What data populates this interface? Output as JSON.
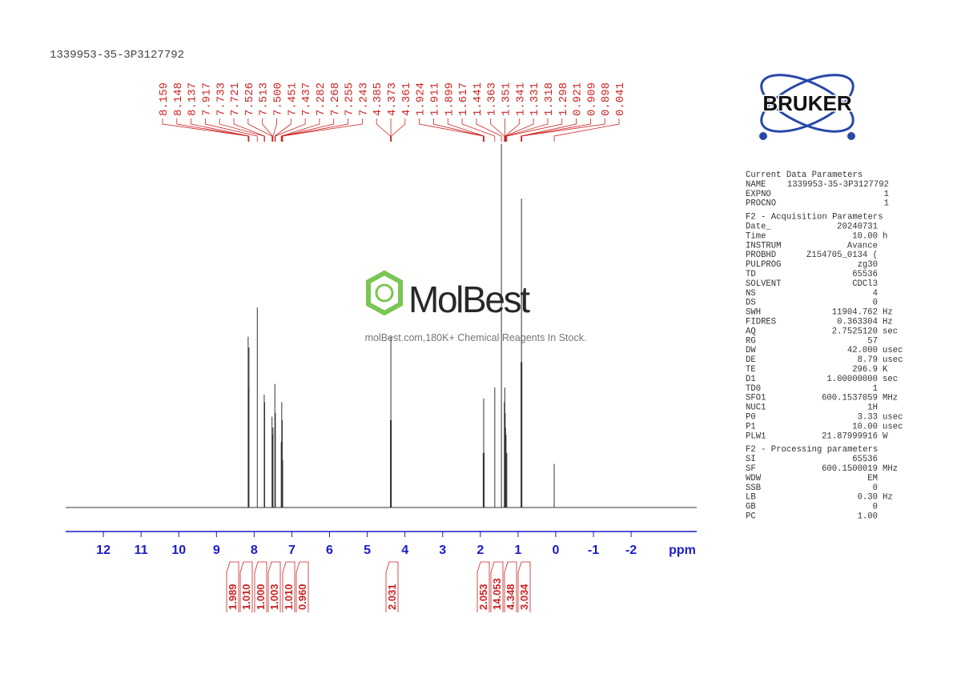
{
  "chart_data": {
    "type": "nmr",
    "title": "1339953-35-3P3127792",
    "x_label": "ppm",
    "xlim": [
      13,
      -3.74
    ],
    "xticks": [
      12,
      11,
      10,
      9,
      8,
      7,
      6,
      5,
      4,
      3,
      2,
      1,
      0,
      -1,
      -2
    ],
    "x": [
      8.159,
      8.148,
      8.137,
      7.917,
      7.733,
      7.721,
      7.526,
      7.513,
      7.5,
      7.451,
      7.437,
      7.282,
      7.268,
      7.255,
      7.243,
      4.385,
      4.373,
      4.361,
      1.924,
      1.911,
      1.899,
      1.617,
      1.441,
      1.363,
      1.351,
      1.341,
      1.331,
      1.318,
      1.298,
      0.921,
      0.909,
      0.898,
      0.041
    ],
    "values": [
      47,
      33,
      44,
      55,
      31,
      29,
      25,
      20,
      22,
      34,
      26,
      18,
      29,
      24,
      13,
      24,
      47,
      24,
      15,
      30,
      15,
      33,
      100,
      29,
      33,
      26,
      22,
      20,
      15,
      40,
      85,
      40,
      12
    ],
    "peak_labels": [
      "8.159",
      "8.148",
      "8.137",
      "7.917",
      "7.733",
      "7.721",
      "7.526",
      "7.513",
      "7.500",
      "7.451",
      "7.437",
      "7.282",
      "7.268",
      "7.255",
      "7.243",
      "4.385",
      "4.373",
      "4.361",
      "1.924",
      "1.911",
      "1.899",
      "1.617",
      "1.441",
      "1.363",
      "1.351",
      "1.341",
      "1.331",
      "1.318",
      "1.298",
      "0.921",
      "0.909",
      "0.898",
      "0.041"
    ],
    "integrals": [
      1.989,
      {
        "value": 1.01,
        "label": "1.010"
      },
      {
        "value": 1,
        "label": "1.000"
      },
      1.003,
      {
        "value": 1.01,
        "label": "1.010"
      },
      {
        "value": 0.96,
        "label": "0.960"
      },
      2.031,
      2.053,
      14.053,
      4.348,
      3.034
    ],
    "color": "#333333",
    "label_color": "#cc2222",
    "axis_color": "#1a1acc"
  },
  "logo": "BRUKER",
  "watermark": {
    "brand": "MolBest",
    "tagline": "molBest.com,180K+ Chemical Reagents In Stock."
  },
  "parameters": [
    {
      "title": "Current Data Parameters",
      "rows": [
        {
          "name": "NAME",
          "value": "1339953-35-3P3127792"
        },
        {
          "name": "EXPNO",
          "value": "1"
        },
        {
          "name": "PROCNO",
          "value": "1"
        }
      ]
    },
    {
      "title": "F2 - Acquisition Parameters",
      "rows": [
        {
          "name": "Date_",
          "value": "20240731"
        },
        {
          "name": "Time",
          "value": "10.00",
          "unit": "h"
        },
        {
          "name": "INSTRUM",
          "value": "Avance"
        },
        {
          "name": "PROBHD",
          "value": "Z154705_0134 ("
        },
        {
          "name": "PULPROG",
          "value": "zg30"
        },
        {
          "name": "TD",
          "value": "65536"
        },
        {
          "name": "SOLVENT",
          "value": "CDCl3"
        },
        {
          "name": "NS",
          "value": "4"
        },
        {
          "name": "DS",
          "value": "0"
        },
        {
          "name": "SWH",
          "value": "11904.762",
          "unit": "Hz"
        },
        {
          "name": "FIDRES",
          "value": "0.363304",
          "unit": "Hz"
        },
        {
          "name": "AQ",
          "value": "2.7525120",
          "unit": "sec"
        },
        {
          "name": "RG",
          "value": "57"
        },
        {
          "name": "DW",
          "value": "42.000",
          "unit": "usec"
        },
        {
          "name": "DE",
          "value": "8.79",
          "unit": "usec"
        },
        {
          "name": "TE",
          "value": "296.9",
          "unit": "K"
        },
        {
          "name": "D1",
          "value": "1.00000000",
          "unit": "sec"
        },
        {
          "name": "TD0",
          "value": "1"
        },
        {
          "name": "SFO1",
          "value": "600.1537059",
          "unit": "MHz"
        },
        {
          "name": "NUC1",
          "value": "1H"
        },
        {
          "name": "P0",
          "value": "3.33",
          "unit": "usec"
        },
        {
          "name": "P1",
          "value": "10.00",
          "unit": "usec"
        },
        {
          "name": "PLW1",
          "value": "21.87999916",
          "unit": "W"
        }
      ]
    },
    {
      "title": "F2 - Processing parameters",
      "rows": [
        {
          "name": "SI",
          "value": "65536"
        },
        {
          "name": "SF",
          "value": "600.1500019",
          "unit": "MHz"
        },
        {
          "name": "WDW",
          "value": "EM"
        },
        {
          "name": "SSB",
          "value": "0"
        },
        {
          "name": "LB",
          "value": "0.30",
          "unit": "Hz"
        },
        {
          "name": "GB",
          "value": "0"
        },
        {
          "name": "PC",
          "value": "1.00"
        }
      ]
    }
  ]
}
